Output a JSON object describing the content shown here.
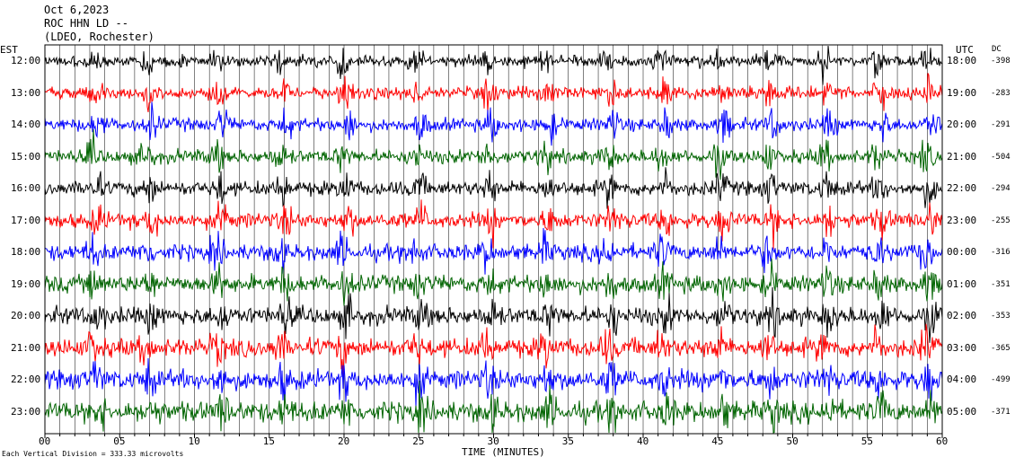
{
  "header": {
    "date": "Oct 6,2023",
    "station": "ROC HHN LD --",
    "network": "(LDEO, Rochester)"
  },
  "chart_data": {
    "type": "line",
    "title": "Oct 6,2023",
    "left_axis_label": "EST",
    "right_axis_label": "UTC",
    "dc_label": "DC",
    "xlabel": "TIME (MINUTES)",
    "xlim": [
      0,
      60
    ],
    "x_ticks": [
      "00",
      "05",
      "10",
      "15",
      "20",
      "25",
      "30",
      "35",
      "40",
      "45",
      "50",
      "55",
      "60"
    ],
    "rows": [
      {
        "est": "12:00",
        "utc": "18:00",
        "dc": "-398",
        "color": "#000000"
      },
      {
        "est": "13:00",
        "utc": "19:00",
        "dc": "-283",
        "color": "#ff0000"
      },
      {
        "est": "14:00",
        "utc": "20:00",
        "dc": "-291",
        "color": "#0000ff"
      },
      {
        "est": "15:00",
        "utc": "21:00",
        "dc": "-504",
        "color": "#006400"
      },
      {
        "est": "16:00",
        "utc": "22:00",
        "dc": "-294",
        "color": "#000000"
      },
      {
        "est": "17:00",
        "utc": "23:00",
        "dc": "-255",
        "color": "#ff0000"
      },
      {
        "est": "18:00",
        "utc": "00:00",
        "dc": "-316",
        "color": "#0000ff"
      },
      {
        "est": "19:00",
        "utc": "01:00",
        "dc": "-351",
        "color": "#006400"
      },
      {
        "est": "20:00",
        "utc": "02:00",
        "dc": "-353",
        "color": "#000000"
      },
      {
        "est": "21:00",
        "utc": "03:00",
        "dc": "-365",
        "color": "#ff0000"
      },
      {
        "est": "22:00",
        "utc": "04:00",
        "dc": "-499",
        "color": "#0000ff"
      },
      {
        "est": "23:00",
        "utc": "05:00",
        "dc": "-371",
        "color": "#006400"
      }
    ],
    "scale_note": "Each Vertical Division =  333.33 microvolts",
    "grid": true
  }
}
